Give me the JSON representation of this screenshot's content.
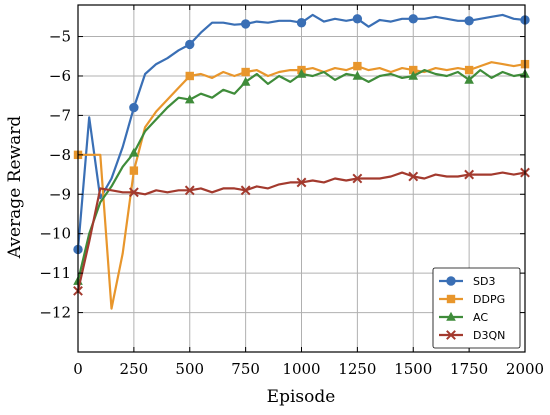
{
  "chart_data": {
    "type": "line",
    "title": "",
    "xlabel": "Episode",
    "ylabel": "Average Reward",
    "xlim": [
      0,
      2000
    ],
    "ylim": [
      -13,
      -4.2
    ],
    "xticks": [
      0,
      250,
      500,
      750,
      1000,
      1250,
      1500,
      1750,
      2000
    ],
    "yticks": [
      -12,
      -11,
      -10,
      -9,
      -8,
      -7,
      -6,
      -5
    ],
    "grid": true,
    "legend_position": "bottom-right",
    "series": [
      {
        "name": "SD3",
        "color": "#3a6fb5",
        "marker": "circle",
        "x": [
          0,
          50,
          100,
          150,
          200,
          250,
          300,
          350,
          400,
          450,
          500,
          550,
          600,
          650,
          700,
          750,
          800,
          850,
          900,
          950,
          1000,
          1050,
          1100,
          1150,
          1200,
          1250,
          1300,
          1350,
          1400,
          1450,
          1500,
          1550,
          1600,
          1650,
          1700,
          1750,
          1800,
          1850,
          1900,
          1950,
          2000
        ],
        "y": [
          -10.4,
          -7.05,
          -9.1,
          -8.6,
          -7.8,
          -6.8,
          -5.95,
          -5.7,
          -5.55,
          -5.35,
          -5.2,
          -4.9,
          -4.65,
          -4.65,
          -4.7,
          -4.68,
          -4.62,
          -4.65,
          -4.6,
          -4.6,
          -4.65,
          -4.45,
          -4.62,
          -4.55,
          -4.6,
          -4.55,
          -4.75,
          -4.58,
          -4.62,
          -4.55,
          -4.55,
          -4.55,
          -4.5,
          -4.55,
          -4.6,
          -4.6,
          -4.55,
          -4.5,
          -4.45,
          -4.55,
          -4.58
        ],
        "markers_x": [
          0,
          250,
          500,
          750,
          1000,
          1250,
          1500,
          1750,
          2000
        ]
      },
      {
        "name": "DDPG",
        "color": "#e8962c",
        "marker": "square",
        "x": [
          0,
          50,
          100,
          150,
          200,
          250,
          300,
          350,
          400,
          450,
          500,
          550,
          600,
          650,
          700,
          750,
          800,
          850,
          900,
          950,
          1000,
          1050,
          1100,
          1150,
          1200,
          1250,
          1300,
          1350,
          1400,
          1450,
          1500,
          1550,
          1600,
          1650,
          1700,
          1750,
          1800,
          1850,
          1900,
          1950,
          2000
        ],
        "y": [
          -8.0,
          -8.0,
          -8.0,
          -11.9,
          -10.5,
          -8.4,
          -7.3,
          -6.9,
          -6.6,
          -6.3,
          -6.0,
          -5.95,
          -6.05,
          -5.9,
          -6.0,
          -5.9,
          -5.85,
          -6.0,
          -5.9,
          -5.85,
          -5.85,
          -5.8,
          -5.9,
          -5.8,
          -5.85,
          -5.75,
          -5.85,
          -5.8,
          -5.9,
          -5.8,
          -5.85,
          -5.9,
          -5.8,
          -5.85,
          -5.8,
          -5.85,
          -5.75,
          -5.65,
          -5.7,
          -5.75,
          -5.7
        ],
        "markers_x": [
          0,
          250,
          500,
          750,
          1000,
          1250,
          1500,
          1750,
          2000
        ]
      },
      {
        "name": "AC",
        "color": "#3f8c3a",
        "marker": "triangle",
        "x": [
          0,
          50,
          100,
          150,
          200,
          250,
          300,
          350,
          400,
          450,
          500,
          550,
          600,
          650,
          700,
          750,
          800,
          850,
          900,
          950,
          1000,
          1050,
          1100,
          1150,
          1200,
          1250,
          1300,
          1350,
          1400,
          1450,
          1500,
          1550,
          1600,
          1650,
          1700,
          1750,
          1800,
          1850,
          1900,
          1950,
          2000
        ],
        "y": [
          -11.2,
          -10.0,
          -9.2,
          -8.8,
          -8.3,
          -7.95,
          -7.4,
          -7.1,
          -6.8,
          -6.55,
          -6.6,
          -6.45,
          -6.55,
          -6.35,
          -6.45,
          -6.15,
          -5.95,
          -6.2,
          -6.0,
          -6.15,
          -5.95,
          -6.0,
          -5.9,
          -6.1,
          -5.95,
          -6.0,
          -6.15,
          -6.0,
          -5.95,
          -6.05,
          -6.0,
          -5.85,
          -5.95,
          -6.0,
          -5.9,
          -6.1,
          -5.85,
          -6.05,
          -5.9,
          -6.0,
          -5.95
        ],
        "markers_x": [
          0,
          250,
          500,
          750,
          1000,
          1250,
          1500,
          1750,
          2000
        ]
      },
      {
        "name": "D3QN",
        "color": "#a33a2e",
        "marker": "x",
        "x": [
          0,
          50,
          100,
          150,
          200,
          250,
          300,
          350,
          400,
          450,
          500,
          550,
          600,
          650,
          700,
          750,
          800,
          850,
          900,
          950,
          1000,
          1050,
          1100,
          1150,
          1200,
          1250,
          1300,
          1350,
          1400,
          1450,
          1500,
          1550,
          1600,
          1650,
          1700,
          1750,
          1800,
          1850,
          1900,
          1950,
          2000
        ],
        "y": [
          -11.45,
          -10.2,
          -8.85,
          -8.9,
          -8.95,
          -8.95,
          -9.0,
          -8.9,
          -8.95,
          -8.9,
          -8.9,
          -8.85,
          -8.95,
          -8.85,
          -8.85,
          -8.9,
          -8.8,
          -8.85,
          -8.75,
          -8.7,
          -8.7,
          -8.65,
          -8.7,
          -8.6,
          -8.65,
          -8.6,
          -8.6,
          -8.6,
          -8.55,
          -8.45,
          -8.55,
          -8.6,
          -8.5,
          -8.55,
          -8.55,
          -8.5,
          -8.5,
          -8.5,
          -8.45,
          -8.5,
          -8.45
        ],
        "markers_x": [
          0,
          250,
          500,
          750,
          1000,
          1250,
          1500,
          1750,
          2000
        ]
      }
    ]
  }
}
